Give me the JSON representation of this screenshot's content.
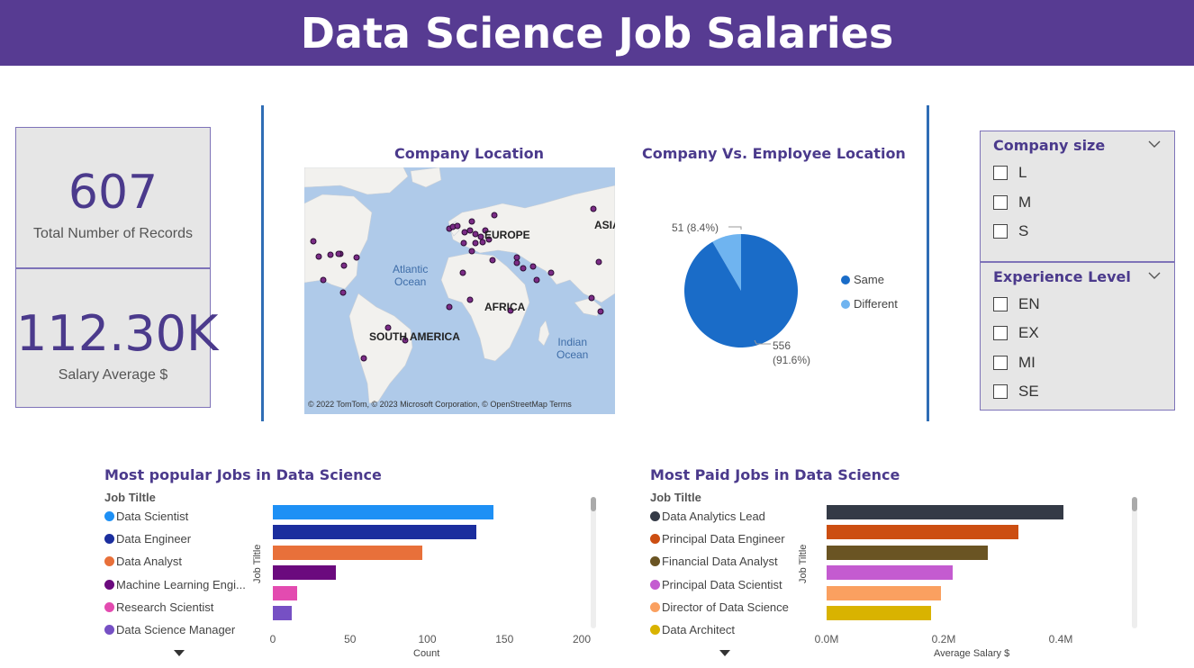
{
  "header": {
    "title": "Data Science Job Salaries"
  },
  "kpis": {
    "records": {
      "value": "607",
      "label": "Total Number of Records"
    },
    "salary": {
      "value": "112.30K",
      "label": "Salary Average $"
    }
  },
  "map": {
    "title": "Company Location",
    "labels": {
      "europe": "EUROPE",
      "asia": "ASIA",
      "africa": "AFRICA",
      "south_america": "SOUTH AMERICA",
      "atlantic": "Atlantic\nOcean",
      "indian": "Indian\nOcean"
    },
    "attribution": "© 2022 TomTom, © 2023 Microsoft Corporation, © OpenStreetMap  Terms"
  },
  "pie": {
    "title": "Company Vs. Employee Location",
    "slices": [
      {
        "name": "Same",
        "value": 556,
        "pct": "91.6%",
        "color": "#1A6CC8"
      },
      {
        "name": "Different",
        "value": 51,
        "pct": "8.4%",
        "color": "#6FB4F0"
      }
    ],
    "label_same": "556",
    "label_same_pct": "(91.6%)",
    "label_diff": "51 (8.4%)"
  },
  "slicers": {
    "company_size": {
      "title": "Company size",
      "options": [
        "L",
        "M",
        "S"
      ]
    },
    "experience": {
      "title": "Experience Level",
      "options": [
        "EN",
        "EX",
        "MI",
        "SE"
      ]
    }
  },
  "popular": {
    "title": "Most popular Jobs in Data Science",
    "legend_title": "Job Tiltle",
    "y_axis_title": "Job Tiltle",
    "x_axis_title": "Count",
    "items": [
      {
        "label": "Data Scientist",
        "color": "#1E90F5"
      },
      {
        "label": "Data Engineer",
        "color": "#1B2E9E"
      },
      {
        "label": "Data Analyst",
        "color": "#E8703A"
      },
      {
        "label": "Machine Learning Engi...",
        "color": "#6B0A7E"
      },
      {
        "label": "Research Scientist",
        "color": "#E34BB0"
      },
      {
        "label": "Data Science Manager",
        "color": "#7650C4"
      }
    ],
    "ticks": [
      "0",
      "50",
      "100",
      "150",
      "200"
    ]
  },
  "paid": {
    "title": "Most Paid Jobs in Data Science",
    "legend_title": "Job Tiltle",
    "y_axis_title": "Job Tiltle",
    "x_axis_title": "Average Salary $",
    "items": [
      {
        "label": "Data Analytics Lead",
        "color": "#343A46"
      },
      {
        "label": "Principal Data Engineer",
        "color": "#CC4E12"
      },
      {
        "label": "Financial Data Analyst",
        "color": "#6A5423"
      },
      {
        "label": "Principal Data Scientist",
        "color": "#C45BD0"
      },
      {
        "label": "Director of Data Science",
        "color": "#FAA060"
      },
      {
        "label": "Data Architect",
        "color": "#D9B300"
      }
    ],
    "ticks": [
      "0.0M",
      "0.2M",
      "0.4M"
    ]
  },
  "chart_data": [
    {
      "type": "bar",
      "title": "Most popular Jobs in Data Science",
      "xlabel": "Count",
      "ylabel": "Job Tiltle",
      "categories": [
        "Data Scientist",
        "Data Engineer",
        "Data Analyst",
        "Machine Learning Engineer",
        "Research Scientist",
        "Data Science Manager"
      ],
      "values": [
        143,
        132,
        97,
        41,
        16,
        12
      ],
      "xlim": [
        0,
        200
      ]
    },
    {
      "type": "bar",
      "title": "Most Paid Jobs in Data Science",
      "xlabel": "Average Salary $",
      "ylabel": "Job Tiltle",
      "categories": [
        "Data Analytics Lead",
        "Principal Data Engineer",
        "Financial Data Analyst",
        "Principal Data Scientist",
        "Director of Data Science",
        "Data Architect"
      ],
      "values": [
        405000,
        328333,
        275000,
        215242,
        195074,
        177874
      ],
      "xlim": [
        0,
        400000
      ]
    },
    {
      "type": "pie",
      "title": "Company Vs. Employee Location",
      "categories": [
        "Same",
        "Different"
      ],
      "values": [
        556,
        51
      ]
    }
  ]
}
